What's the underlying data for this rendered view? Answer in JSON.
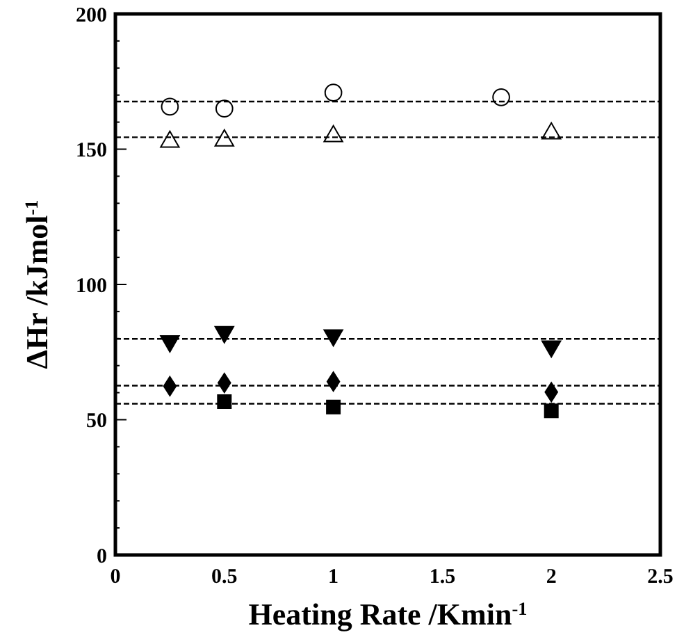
{
  "chart_data": {
    "type": "scatter",
    "xlabel": "Heating Rate /Kmin$^{-1}$",
    "ylabel": "ΔHr /kJmol$^{-1}$",
    "xlim": [
      0,
      2.5
    ],
    "xticks": [
      0,
      0.5,
      1,
      1.5,
      2,
      2.5
    ],
    "ylim": [
      0,
      200
    ],
    "yticks": [
      0,
      {
        "value": 10,
        "label": null
      },
      {
        "value": 20,
        "label": null
      },
      {
        "value": 30,
        "label": null
      },
      {
        "value": 40,
        "label": null
      },
      50,
      {
        "value": 60,
        "label": null
      },
      {
        "value": 70,
        "label": null
      },
      {
        "value": 80,
        "label": null
      },
      {
        "value": 90,
        "label": null
      },
      100,
      {
        "value": 110,
        "label": null
      },
      {
        "value": 120,
        "label": null
      },
      {
        "value": 130,
        "label": null
      },
      {
        "value": 140,
        "label": null
      },
      150,
      {
        "value": 160,
        "label": null
      },
      {
        "value": 170,
        "label": null
      },
      {
        "value": 180,
        "label": null
      },
      {
        "value": 190,
        "label": null
      },
      200
    ],
    "grid": false,
    "series": [
      {
        "color": "#000000",
        "marker": "circle",
        "x": [
          0.25,
          0.5,
          1,
          1.77
        ],
        "values": [
          165.7,
          165,
          170.9,
          169.2
        ]
      },
      {
        "color": "#000000",
        "marker": "triangle",
        "x": [
          0.25,
          0.5,
          1,
          2
        ],
        "values": [
          152.7,
          153.2,
          154.8,
          155.8
        ]
      },
      {
        "color": "#000000",
        "marker": "triangle-down",
        "x": [
          0.25,
          0.5,
          1,
          2
        ],
        "values": [
          79,
          82.4,
          81.2,
          77.1
        ]
      },
      {
        "color": "#000000",
        "marker": "diamond",
        "x": [
          0.25,
          0.5,
          1,
          2
        ],
        "values": [
          62.4,
          63.6,
          64.1,
          60.2
        ]
      },
      {
        "color": "#000000",
        "marker": "square",
        "x": [
          0.5,
          1,
          2
        ],
        "values": [
          56.7,
          54.7,
          53.3
        ]
      }
    ],
    "ref_lines": [
      {
        "axis": "y",
        "value": 167.6,
        "color": "#000000",
        "line_style": "dashed"
      },
      {
        "axis": "y",
        "value": 154.4,
        "color": "#000000",
        "line_style": "dashed"
      },
      {
        "axis": "y",
        "value": 79.9,
        "color": "#000000",
        "line_style": "dashed"
      },
      {
        "axis": "y",
        "value": 62.6,
        "color": "#000000",
        "line_style": "dashed"
      },
      {
        "axis": "y",
        "value": 55.9,
        "color": "#000000",
        "line_style": "dashed"
      }
    ]
  }
}
